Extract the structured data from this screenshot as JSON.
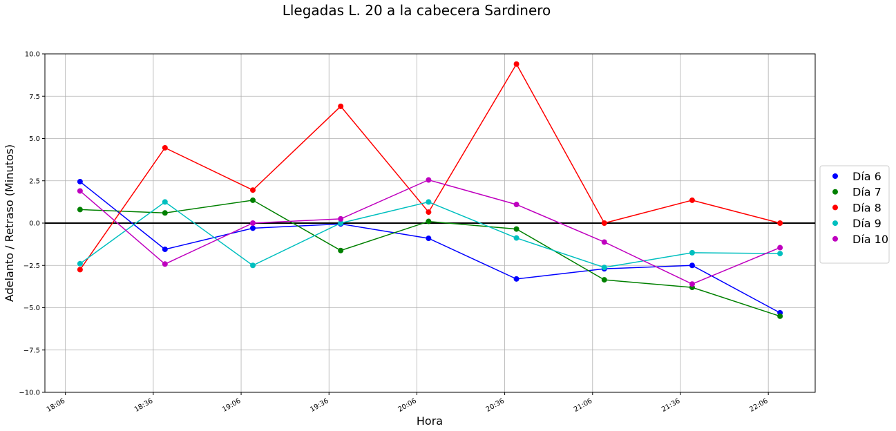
{
  "chart_data": {
    "type": "line",
    "title": "Llegadas L. 20 a la cabecera Sardinero",
    "xlabel": "Hora",
    "ylabel": "Adelanto / Retraso (Minutos)",
    "x_tick_labels": [
      "18:06",
      "18:36",
      "19:06",
      "19:36",
      "20:06",
      "20:36",
      "21:06",
      "21:36",
      "22:06"
    ],
    "x_tick_minutes": [
      1086,
      1116,
      1146,
      1176,
      1206,
      1236,
      1266,
      1296,
      1326
    ],
    "xlim_minutes": [
      1079,
      1342
    ],
    "y_tick_labels": [
      "10.0",
      "7.5",
      "5.0",
      "2.5",
      "0.0",
      "−2.5",
      "−5.0",
      "−7.5",
      "−10.0"
    ],
    "y_tick_values": [
      10,
      7.5,
      5,
      2.5,
      0,
      -2.5,
      -5,
      -7.5,
      -10
    ],
    "ylim": [
      -10,
      10
    ],
    "grid": true,
    "reference_line_y": 0,
    "legend_position": "center-right-outside",
    "x_minutes": [
      1091,
      1120,
      1150,
      1180,
      1210,
      1240,
      1270,
      1300,
      1330
    ],
    "series": [
      {
        "name": "Día 6",
        "color": "#0000ff",
        "values": [
          2.45,
          -1.55,
          -0.3,
          -0.05,
          -0.9,
          -3.3,
          -2.7,
          -2.5,
          -5.3
        ]
      },
      {
        "name": "Día 7",
        "color": "#008000",
        "values": [
          0.8,
          0.6,
          1.35,
          -1.62,
          0.1,
          -0.35,
          -3.35,
          -3.8,
          -5.5
        ]
      },
      {
        "name": "Día 8",
        "color": "#ff0000",
        "values": [
          -2.75,
          4.45,
          1.95,
          6.9,
          0.65,
          9.4,
          0.0,
          1.35,
          0.0
        ]
      },
      {
        "name": "Día 9",
        "color": "#00bfbf",
        "values": [
          -2.4,
          1.25,
          -2.5,
          0.0,
          1.25,
          -0.88,
          -2.62,
          -1.75,
          -1.8
        ]
      },
      {
        "name": "Día 10",
        "color": "#bf00bf",
        "values": [
          1.9,
          -2.42,
          0.0,
          0.25,
          2.55,
          1.1,
          -1.12,
          -3.6,
          -1.45
        ]
      }
    ]
  }
}
